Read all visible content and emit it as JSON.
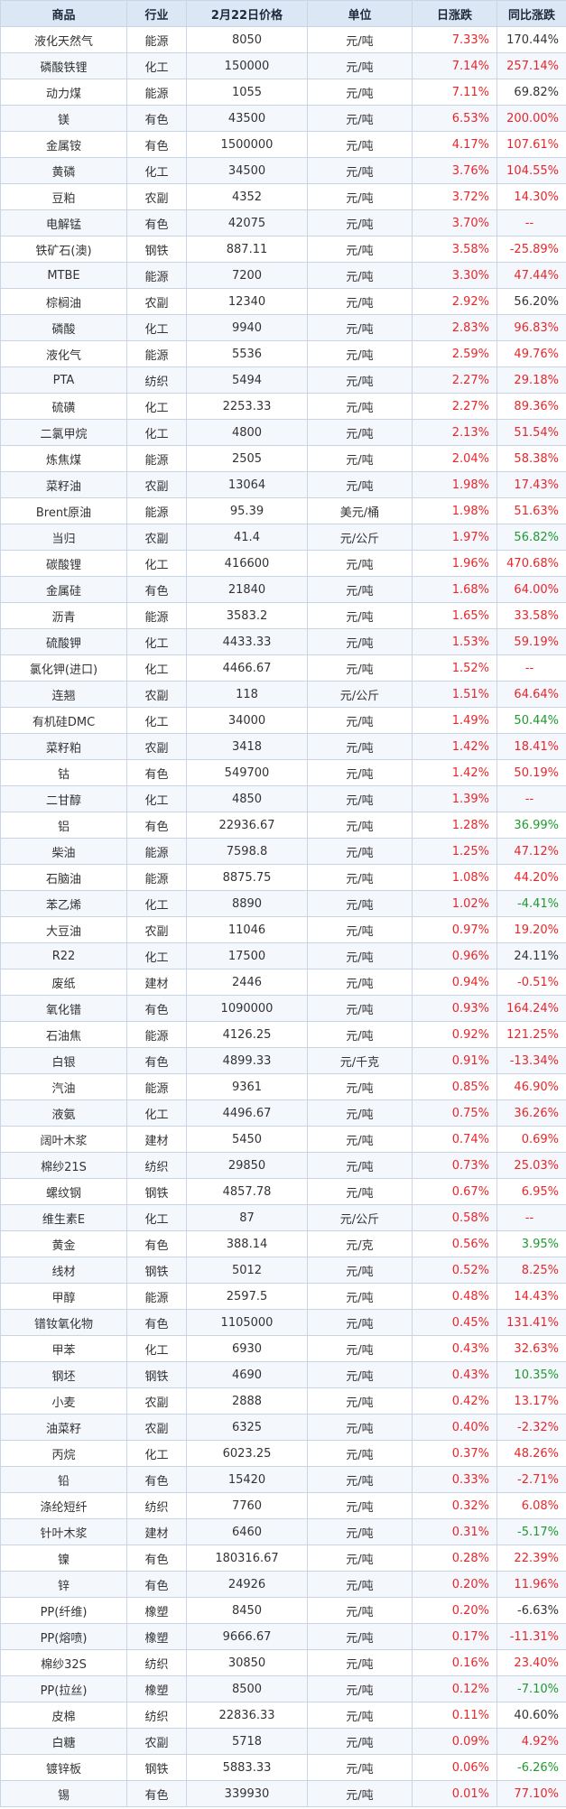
{
  "columns": [
    "商品",
    "行业",
    "2月22日价格",
    "单位",
    "日涨跌",
    "同比涨跌"
  ],
  "colors": {
    "up": "#e8262a",
    "down": "#1f9a2e",
    "neutral": "#333333",
    "header_bg": "#dce7f5"
  },
  "rows": [
    [
      "液化天然气",
      "能源",
      "8050",
      "元/吨",
      "7.33%",
      "170.44%",
      "k"
    ],
    [
      "磷酸铁锂",
      "化工",
      "150000",
      "元/吨",
      "7.14%",
      "257.14%",
      "r"
    ],
    [
      "动力煤",
      "能源",
      "1055",
      "元/吨",
      "7.11%",
      "69.82%",
      "k"
    ],
    [
      "镁",
      "有色",
      "43500",
      "元/吨",
      "6.53%",
      "200.00%",
      "r"
    ],
    [
      "金属铵",
      "有色",
      "1500000",
      "元/吨",
      "4.17%",
      "107.61%",
      "r"
    ],
    [
      "黄磷",
      "化工",
      "34500",
      "元/吨",
      "3.76%",
      "104.55%",
      "r"
    ],
    [
      "豆粕",
      "农副",
      "4352",
      "元/吨",
      "3.72%",
      "14.30%",
      "r"
    ],
    [
      "电解锰",
      "有色",
      "42075",
      "元/吨",
      "3.70%",
      "--",
      "r"
    ],
    [
      "铁矿石(澳)",
      "钢铁",
      "887.11",
      "元/吨",
      "3.58%",
      "-25.89%",
      "r"
    ],
    [
      "MTBE",
      "能源",
      "7200",
      "元/吨",
      "3.30%",
      "47.44%",
      "r"
    ],
    [
      "棕榈油",
      "农副",
      "12340",
      "元/吨",
      "2.92%",
      "56.20%",
      "k"
    ],
    [
      "磷酸",
      "化工",
      "9940",
      "元/吨",
      "2.83%",
      "96.83%",
      "r"
    ],
    [
      "液化气",
      "能源",
      "5536",
      "元/吨",
      "2.59%",
      "49.76%",
      "r"
    ],
    [
      "PTA",
      "纺织",
      "5494",
      "元/吨",
      "2.27%",
      "29.18%",
      "r"
    ],
    [
      "硫磺",
      "化工",
      "2253.33",
      "元/吨",
      "2.27%",
      "89.36%",
      "r"
    ],
    [
      "二氯甲烷",
      "化工",
      "4800",
      "元/吨",
      "2.13%",
      "51.54%",
      "r"
    ],
    [
      "炼焦煤",
      "能源",
      "2505",
      "元/吨",
      "2.04%",
      "58.38%",
      "r"
    ],
    [
      "菜籽油",
      "农副",
      "13064",
      "元/吨",
      "1.98%",
      "17.43%",
      "r"
    ],
    [
      "Brent原油",
      "能源",
      "95.39",
      "美元/桶",
      "1.98%",
      "51.63%",
      "r"
    ],
    [
      "当归",
      "农副",
      "41.4",
      "元/公斤",
      "1.97%",
      "56.82%",
      "g"
    ],
    [
      "碳酸锂",
      "化工",
      "416600",
      "元/吨",
      "1.96%",
      "470.68%",
      "r"
    ],
    [
      "金属硅",
      "有色",
      "21840",
      "元/吨",
      "1.68%",
      "64.00%",
      "r"
    ],
    [
      "沥青",
      "能源",
      "3583.2",
      "元/吨",
      "1.65%",
      "33.58%",
      "r"
    ],
    [
      "硫酸钾",
      "化工",
      "4433.33",
      "元/吨",
      "1.53%",
      "59.19%",
      "r"
    ],
    [
      "氯化钾(进口)",
      "化工",
      "4466.67",
      "元/吨",
      "1.52%",
      "--",
      "r"
    ],
    [
      "连翘",
      "农副",
      "118",
      "元/公斤",
      "1.51%",
      "64.64%",
      "r"
    ],
    [
      "有机硅DMC",
      "化工",
      "34000",
      "元/吨",
      "1.49%",
      "50.44%",
      "g"
    ],
    [
      "菜籽粕",
      "农副",
      "3418",
      "元/吨",
      "1.42%",
      "18.41%",
      "r"
    ],
    [
      "钴",
      "有色",
      "549700",
      "元/吨",
      "1.42%",
      "50.19%",
      "r"
    ],
    [
      "二甘醇",
      "化工",
      "4850",
      "元/吨",
      "1.39%",
      "--",
      "r"
    ],
    [
      "铝",
      "有色",
      "22936.67",
      "元/吨",
      "1.28%",
      "36.99%",
      "g"
    ],
    [
      "柴油",
      "能源",
      "7598.8",
      "元/吨",
      "1.25%",
      "47.12%",
      "r"
    ],
    [
      "石脑油",
      "能源",
      "8875.75",
      "元/吨",
      "1.08%",
      "44.20%",
      "r"
    ],
    [
      "苯乙烯",
      "化工",
      "8890",
      "元/吨",
      "1.02%",
      "-4.41%",
      "g"
    ],
    [
      "大豆油",
      "农副",
      "11046",
      "元/吨",
      "0.97%",
      "19.20%",
      "r"
    ],
    [
      "R22",
      "化工",
      "17500",
      "元/吨",
      "0.96%",
      "24.11%",
      "k"
    ],
    [
      "废纸",
      "建材",
      "2446",
      "元/吨",
      "0.94%",
      "-0.51%",
      "r"
    ],
    [
      "氧化镨",
      "有色",
      "1090000",
      "元/吨",
      "0.93%",
      "164.24%",
      "r"
    ],
    [
      "石油焦",
      "能源",
      "4126.25",
      "元/吨",
      "0.92%",
      "121.25%",
      "r"
    ],
    [
      "白银",
      "有色",
      "4899.33",
      "元/千克",
      "0.91%",
      "-13.34%",
      "r"
    ],
    [
      "汽油",
      "能源",
      "9361",
      "元/吨",
      "0.85%",
      "46.90%",
      "r"
    ],
    [
      "液氨",
      "化工",
      "4496.67",
      "元/吨",
      "0.75%",
      "36.26%",
      "r"
    ],
    [
      "阔叶木浆",
      "建材",
      "5450",
      "元/吨",
      "0.74%",
      "0.69%",
      "r"
    ],
    [
      "棉纱21S",
      "纺织",
      "29850",
      "元/吨",
      "0.73%",
      "25.03%",
      "r"
    ],
    [
      "螺纹钢",
      "钢铁",
      "4857.78",
      "元/吨",
      "0.67%",
      "6.95%",
      "r"
    ],
    [
      "维生素E",
      "化工",
      "87",
      "元/公斤",
      "0.58%",
      "--",
      "r"
    ],
    [
      "黄金",
      "有色",
      "388.14",
      "元/克",
      "0.56%",
      "3.95%",
      "g"
    ],
    [
      "线材",
      "钢铁",
      "5012",
      "元/吨",
      "0.52%",
      "8.25%",
      "r"
    ],
    [
      "甲醇",
      "能源",
      "2597.5",
      "元/吨",
      "0.48%",
      "14.43%",
      "r"
    ],
    [
      "镨钕氧化物",
      "有色",
      "1105000",
      "元/吨",
      "0.45%",
      "131.41%",
      "r"
    ],
    [
      "甲苯",
      "化工",
      "6930",
      "元/吨",
      "0.43%",
      "32.63%",
      "r"
    ],
    [
      "钢坯",
      "钢铁",
      "4690",
      "元/吨",
      "0.43%",
      "10.35%",
      "g"
    ],
    [
      "小麦",
      "农副",
      "2888",
      "元/吨",
      "0.42%",
      "13.17%",
      "r"
    ],
    [
      "油菜籽",
      "农副",
      "6325",
      "元/吨",
      "0.40%",
      "-2.32%",
      "r"
    ],
    [
      "丙烷",
      "化工",
      "6023.25",
      "元/吨",
      "0.37%",
      "48.26%",
      "r"
    ],
    [
      "铅",
      "有色",
      "15420",
      "元/吨",
      "0.33%",
      "-2.71%",
      "r"
    ],
    [
      "涤纶短纤",
      "纺织",
      "7760",
      "元/吨",
      "0.32%",
      "6.08%",
      "r"
    ],
    [
      "针叶木浆",
      "建材",
      "6460",
      "元/吨",
      "0.31%",
      "-5.17%",
      "g"
    ],
    [
      "镍",
      "有色",
      "180316.67",
      "元/吨",
      "0.28%",
      "22.39%",
      "r"
    ],
    [
      "锌",
      "有色",
      "24926",
      "元/吨",
      "0.20%",
      "11.96%",
      "r"
    ],
    [
      "PP(纤维)",
      "橡塑",
      "8450",
      "元/吨",
      "0.20%",
      "-6.63%",
      "k"
    ],
    [
      "PP(熔喷)",
      "橡塑",
      "9666.67",
      "元/吨",
      "0.17%",
      "-11.31%",
      "r"
    ],
    [
      "棉纱32S",
      "纺织",
      "30850",
      "元/吨",
      "0.16%",
      "23.40%",
      "r"
    ],
    [
      "PP(拉丝)",
      "橡塑",
      "8500",
      "元/吨",
      "0.12%",
      "-7.10%",
      "g"
    ],
    [
      "皮棉",
      "纺织",
      "22836.33",
      "元/吨",
      "0.11%",
      "40.60%",
      "k"
    ],
    [
      "白糖",
      "农副",
      "5718",
      "元/吨",
      "0.09%",
      "4.92%",
      "r"
    ],
    [
      "镀锌板",
      "钢铁",
      "5883.33",
      "元/吨",
      "0.06%",
      "-6.26%",
      "g"
    ],
    [
      "锡",
      "有色",
      "339930",
      "元/吨",
      "0.01%",
      "77.10%",
      "r"
    ]
  ]
}
